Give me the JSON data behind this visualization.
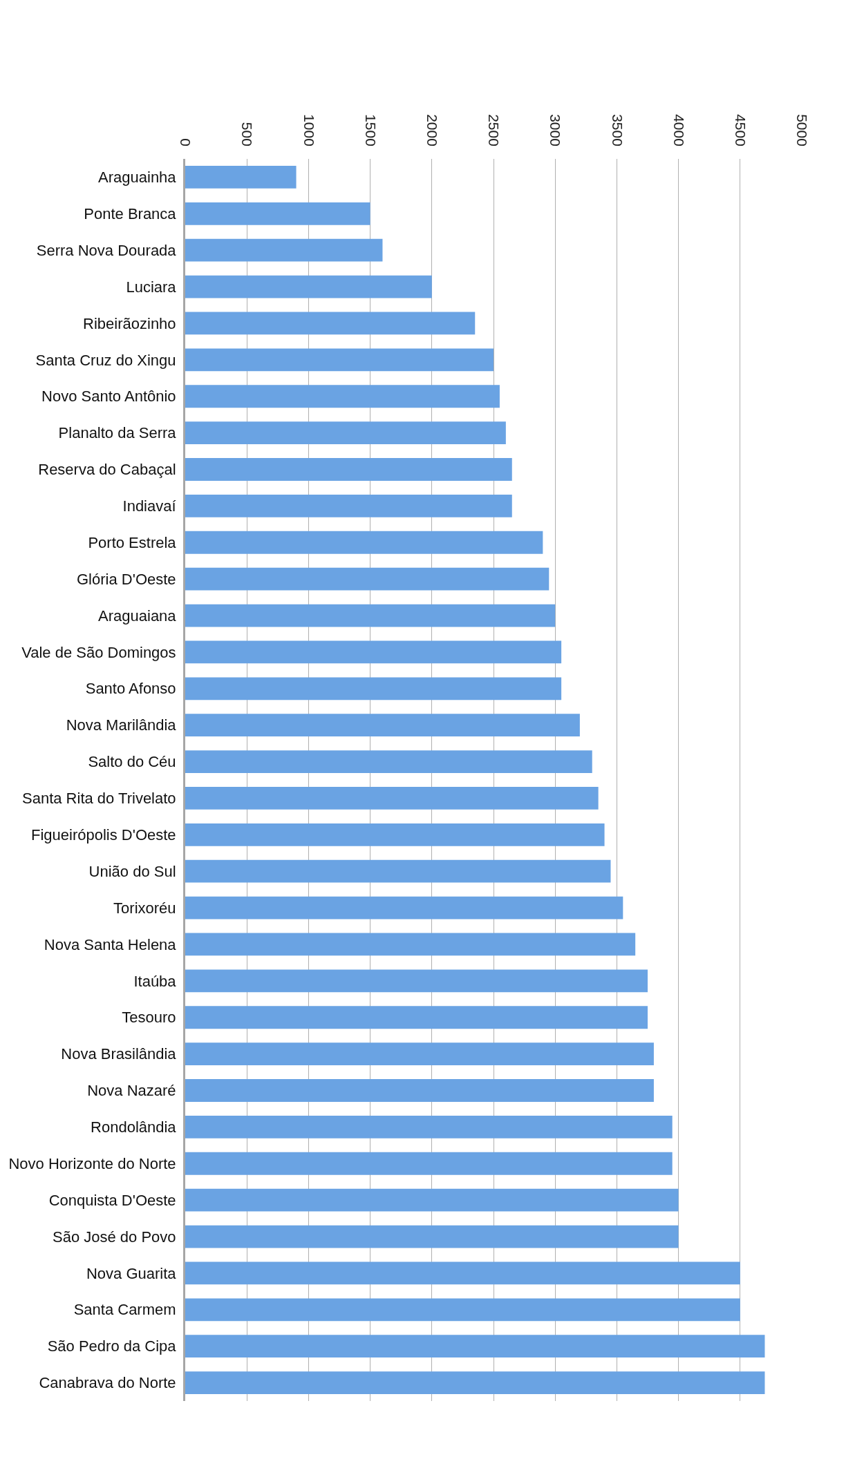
{
  "chart_data": {
    "type": "bar",
    "orientation": "horizontal",
    "categories": [
      "Araguainha",
      "Ponte Branca",
      "Serra Nova Dourada",
      "Luciara",
      "Ribeirãozinho",
      "Santa Cruz do Xingu",
      "Novo Santo Antônio",
      "Planalto da Serra",
      "Reserva do Cabaçal",
      "Indiavaí",
      "Porto Estrela",
      "Glória D'Oeste",
      "Araguaiana",
      "Vale de São Domingos",
      "Santo Afonso",
      "Nova Marilândia",
      "Salto do Céu",
      "Santa Rita do Trivelato",
      "Figueirópolis D'Oeste",
      "União do Sul",
      "Torixoréu",
      "Nova Santa Helena",
      "Itaúba",
      "Tesouro",
      "Nova Brasilândia",
      "Nova Nazaré",
      "Rondolândia",
      "Novo Horizonte do Norte",
      "Conquista D'Oeste",
      "São José do Povo",
      "Nova Guarita",
      "Santa Carmem",
      "São Pedro da Cipa",
      "Canabrava do Norte"
    ],
    "values": [
      900,
      1500,
      1600,
      2000,
      2350,
      2500,
      2550,
      2600,
      2650,
      2650,
      2900,
      2950,
      3000,
      3050,
      3050,
      3200,
      3300,
      3350,
      3400,
      3450,
      3550,
      3650,
      3750,
      3750,
      3800,
      3800,
      3950,
      3950,
      4000,
      4000,
      4500,
      4500,
      4700,
      4700
    ],
    "color": "#6aa3e3",
    "xlim": [
      0,
      5000
    ],
    "xticks": [
      0,
      500,
      1000,
      1500,
      2000,
      2500,
      3000,
      3500,
      4000,
      4500,
      5000
    ],
    "grid": "x"
  }
}
